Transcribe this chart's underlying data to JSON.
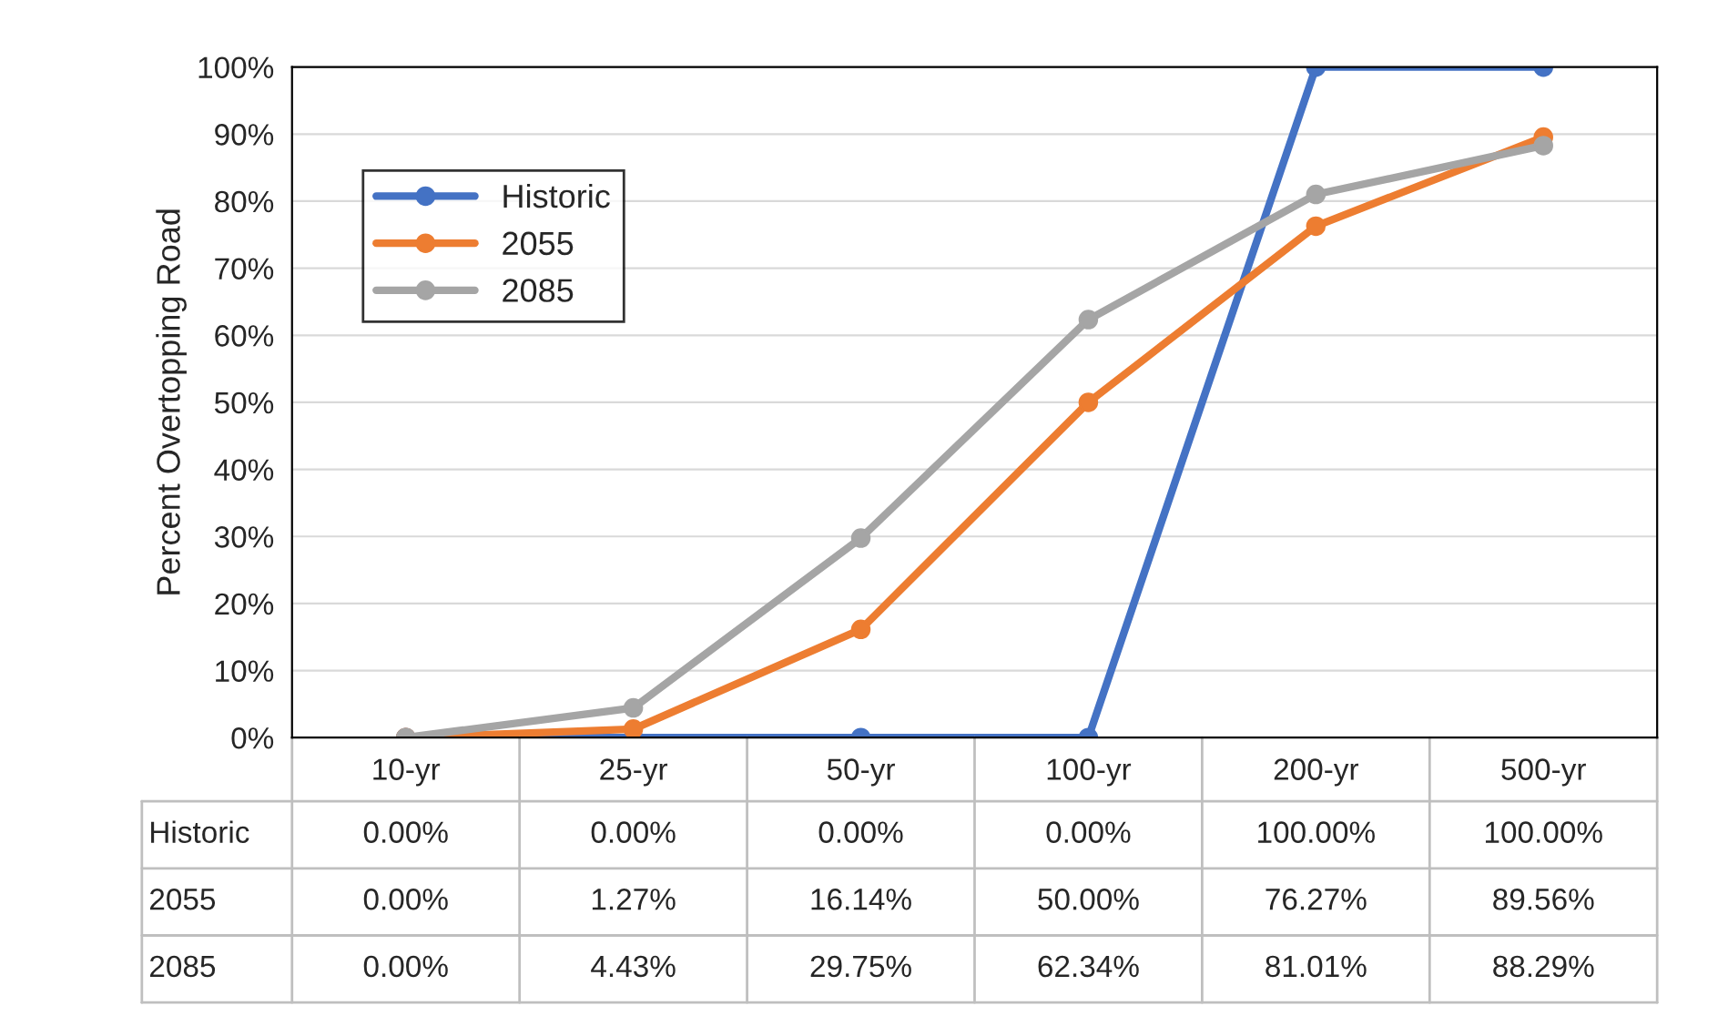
{
  "chart_data": {
    "type": "line",
    "ylabel": "Percent Overtopping Road",
    "categories": [
      "10-yr",
      "25-yr",
      "50-yr",
      "100-yr",
      "200-yr",
      "500-yr"
    ],
    "series": [
      {
        "name": "Historic",
        "color": "#4472c4",
        "values": [
          0.0,
          0.0,
          0.0,
          0.0,
          100.0,
          100.0
        ],
        "value_labels": [
          "0.00%",
          "0.00%",
          "0.00%",
          "0.00%",
          "100.00%",
          "100.00%"
        ]
      },
      {
        "name": "2055",
        "color": "#ed7d31",
        "values": [
          0.0,
          1.27,
          16.14,
          50.0,
          76.27,
          89.56
        ],
        "value_labels": [
          "0.00%",
          "1.27%",
          "16.14%",
          "50.00%",
          "76.27%",
          "89.56%"
        ]
      },
      {
        "name": "2085",
        "color": "#a5a5a5",
        "values": [
          0.0,
          4.43,
          29.75,
          62.34,
          81.01,
          88.29
        ],
        "value_labels": [
          "0.00%",
          "4.43%",
          "29.75%",
          "62.34%",
          "81.01%",
          "88.29%"
        ]
      }
    ],
    "ylim": [
      0,
      100
    ],
    "yticks": [
      {
        "value": 0,
        "label": "0%"
      },
      {
        "value": 10,
        "label": "10%"
      },
      {
        "value": 20,
        "label": "20%"
      },
      {
        "value": 30,
        "label": "30%"
      },
      {
        "value": 40,
        "label": "40%"
      },
      {
        "value": 50,
        "label": "50%"
      },
      {
        "value": 60,
        "label": "60%"
      },
      {
        "value": 70,
        "label": "70%"
      },
      {
        "value": 80,
        "label": "80%"
      },
      {
        "value": 90,
        "label": "90%"
      },
      {
        "value": 100,
        "label": "100%"
      }
    ],
    "grid": "y",
    "legend": "top left",
    "marker": "circle",
    "line_style": "solid"
  }
}
